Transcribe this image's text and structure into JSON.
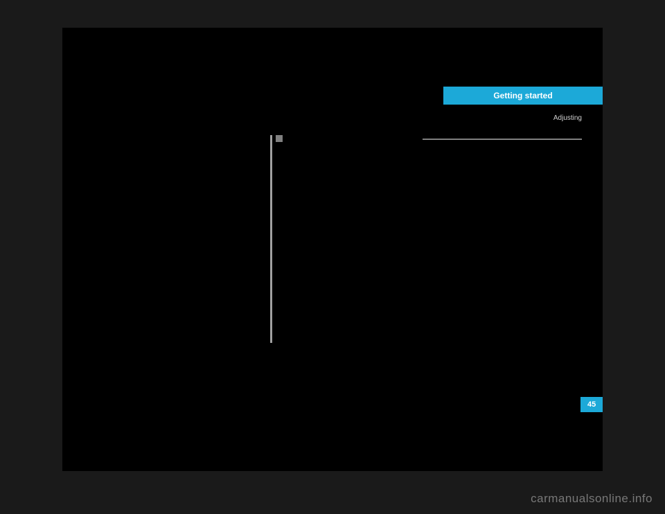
{
  "header": {
    "tab_label": "Getting started",
    "subtitle": "Adjusting"
  },
  "page": {
    "number": "45"
  },
  "watermark": {
    "text": "carmanualsonline.info"
  },
  "colors": {
    "background": "#1a1a1a",
    "page_bg": "#000000",
    "accent": "#1ca9d8",
    "text_light": "#ffffff",
    "text_muted": "#d0d0d0",
    "scrollbar": "#a0a0a0",
    "watermark": "#787878"
  }
}
